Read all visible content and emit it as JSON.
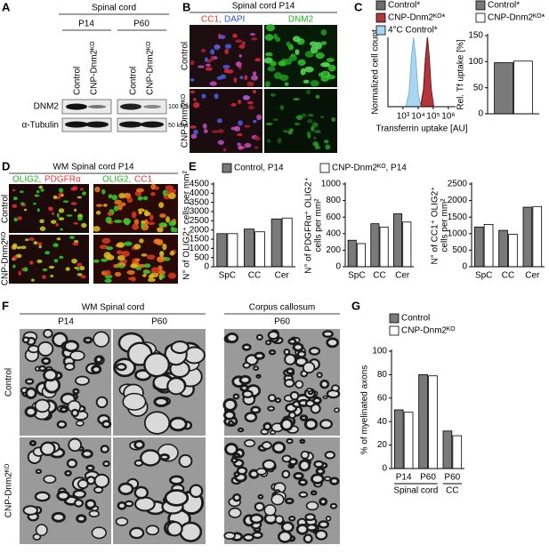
{
  "panels": {
    "A": {
      "letter": "A",
      "tissue": "Spinal cord",
      "ages": [
        "P14",
        "P60"
      ],
      "lanes": [
        "Control",
        "CNP-Dnm2ᴷᴼ",
        "Control",
        "CNP-Dnm2ᴷᴼ"
      ],
      "proteins": [
        "DNM2",
        "α-Tubulin"
      ],
      "sizes": [
        "100 kDa",
        "50 kDa"
      ]
    },
    "B": {
      "letter": "B",
      "title": "Spinal cord P14",
      "channels": [
        {
          "text": "CC1,",
          "color": "#e53935"
        },
        {
          "text": "DAPI",
          "color": "#2f4fd6"
        },
        {
          "text": "DNM2",
          "color": "#22b022"
        }
      ],
      "rows": [
        "Control",
        "CNP-Dnm2ᴷᴼ"
      ]
    },
    "C": {
      "letter": "C"
    },
    "D": {
      "letter": "D",
      "title": "WM Spinal cord P14",
      "stains": [
        [
          {
            "text": "OLIG2,",
            "color": "#22b022"
          },
          {
            "text": "PDGFRα",
            "color": "#e53935"
          }
        ],
        [
          {
            "text": "OLIG2,",
            "color": "#22b022"
          },
          {
            "text": "CC1",
            "color": "#e53935"
          }
        ]
      ],
      "rows": [
        "Control",
        "CNP-Dnm2ᴷᴼ"
      ]
    },
    "E": {
      "letter": "E",
      "legend": [
        {
          "name": "Control, P14",
          "color": "#7a7a7a"
        },
        {
          "name": "CNP-Dnm2ᴷᴼ, P14",
          "color": "#ffffff"
        }
      ]
    },
    "F": {
      "letter": "F",
      "regions": [
        "WM Spinal cord",
        "Corpus callosum"
      ],
      "ages": [
        "P14",
        "P60",
        "P60"
      ],
      "rows": [
        "Control",
        "CNP-Dnm2ᴷᴼ"
      ]
    },
    "G": {
      "letter": "G"
    }
  },
  "chart_data": [
    {
      "type": "area",
      "xlabel": "Transferrin uptake [AU]",
      "ylabel": [
        "Normalized cell count"
      ],
      "xscale": "log",
      "xlim": [
        100,
        3000000
      ],
      "ylim": [
        0,
        100
      ],
      "xticks": [
        {
          "value": 1000,
          "label": "10³"
        },
        {
          "value": 10000,
          "label": "10⁴"
        },
        {
          "value": 100000,
          "label": "10⁵"
        },
        {
          "value": 1000000,
          "label": "10⁶"
        }
      ],
      "series": [
        {
          "name": "Control*",
          "color": "#6e6e6e",
          "x": [
            14000,
            22000,
            30000,
            40000,
            52000,
            70000,
            100000
          ],
          "values": [
            0,
            25,
            70,
            100,
            75,
            25,
            0
          ]
        },
        {
          "name": "CNP-Dnm2ᴷᴼ*",
          "color": "#b3363b",
          "x": [
            15000,
            23000,
            32000,
            42000,
            55000,
            75000,
            110000
          ],
          "values": [
            0,
            25,
            75,
            100,
            72,
            25,
            0
          ]
        },
        {
          "name": "4°C Control*",
          "color": "#a9d5f2",
          "x": [
            1500,
            2500,
            3500,
            5000,
            7000,
            10000,
            15000
          ],
          "values": [
            0,
            20,
            70,
            100,
            70,
            20,
            0
          ]
        }
      ]
    },
    {
      "type": "bar",
      "ylabel": [
        "Rel. Tf uptake [%]"
      ],
      "ylim": [
        0,
        150
      ],
      "yticks": [
        0,
        50,
        100,
        150
      ],
      "series": [
        {
          "name": "Control*",
          "color": "#7a7a7a",
          "values": [
            98
          ]
        },
        {
          "name": "CNP-Dnm2ᴷᴼ*",
          "color": "#ffffff",
          "values": [
            101
          ]
        }
      ]
    },
    {
      "type": "bar",
      "ylabel": [
        "N° of OLIG2⁺ cells per mm²"
      ],
      "categories": [
        "SpC",
        "CC",
        "Cer"
      ],
      "ylim": [
        0,
        4500
      ],
      "yticks": [
        0,
        500,
        1000,
        1500,
        2000,
        2500,
        3000,
        3500,
        4000,
        4500
      ],
      "series": [
        {
          "color": "#7a7a7a",
          "values": [
            1800,
            2050,
            2600
          ]
        },
        {
          "color": "#ffffff",
          "values": [
            1800,
            1900,
            2650
          ]
        }
      ]
    },
    {
      "type": "bar",
      "ylabel": [
        "N° of PDGFRα⁺ OLIG2⁺",
        "cells per mm²"
      ],
      "categories": [
        "SpC",
        "CC",
        "Cer"
      ],
      "ylim": [
        0,
        1000
      ],
      "yticks": [
        0,
        200,
        400,
        600,
        800,
        1000
      ],
      "series": [
        {
          "color": "#7a7a7a",
          "values": [
            320,
            520,
            640
          ]
        },
        {
          "color": "#ffffff",
          "values": [
            280,
            480,
            540
          ]
        }
      ]
    },
    {
      "type": "bar",
      "ylabel": [
        "N° of CC1⁺ OLIG2⁺",
        "cells per mm²"
      ],
      "categories": [
        "SpC",
        "CC",
        "Cer"
      ],
      "ylim": [
        0,
        2500
      ],
      "yticks": [
        0,
        500,
        1000,
        1500,
        2000,
        2500
      ],
      "series": [
        {
          "color": "#7a7a7a",
          "values": [
            1200,
            1100,
            1800
          ]
        },
        {
          "color": "#ffffff",
          "values": [
            1280,
            980,
            1820
          ]
        }
      ]
    },
    {
      "type": "bar",
      "ylabel": [
        "% of myelinated axons"
      ],
      "categories": [
        "P14",
        "P60",
        "P60"
      ],
      "group_labels": [
        "Spinal cord",
        "CC"
      ],
      "ylim": [
        0,
        100
      ],
      "yticks": [
        0,
        20,
        40,
        60,
        80,
        100
      ],
      "series": [
        {
          "name": "Control",
          "color": "#7a7a7a",
          "values": [
            50,
            80,
            32
          ]
        },
        {
          "name": "CNP-Dnm2ᴷᴼ",
          "color": "#ffffff",
          "values": [
            48,
            79,
            28
          ]
        }
      ]
    }
  ]
}
